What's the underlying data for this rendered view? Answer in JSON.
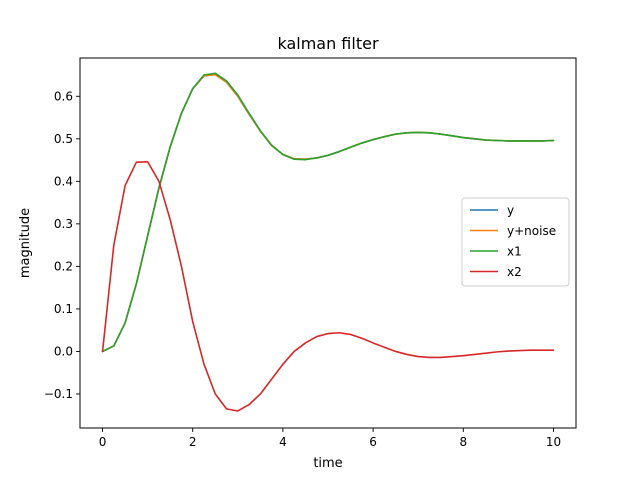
{
  "chart_data": {
    "type": "line",
    "title": "kalman filter",
    "xlabel": "time",
    "ylabel": "magnitude",
    "xlim": [
      -0.5,
      10.5
    ],
    "ylim": [
      -0.18,
      0.69
    ],
    "xticks": [
      0,
      2,
      4,
      6,
      8,
      10
    ],
    "yticks": [
      -0.1,
      0.0,
      0.1,
      0.2,
      0.3,
      0.4,
      0.5,
      0.6
    ],
    "ytick_labels": [
      "−0.1",
      "0.0",
      "0.1",
      "0.2",
      "0.3",
      "0.4",
      "0.5",
      "0.6"
    ],
    "grid": false,
    "legend_position": "center-right",
    "x": [
      0,
      0.25,
      0.5,
      0.75,
      1.0,
      1.25,
      1.5,
      1.75,
      2.0,
      2.25,
      2.5,
      2.75,
      3.0,
      3.25,
      3.5,
      3.75,
      4.0,
      4.25,
      4.5,
      4.75,
      5.0,
      5.25,
      5.5,
      5.75,
      6.0,
      6.25,
      6.5,
      6.75,
      7.0,
      7.25,
      7.5,
      7.75,
      8.0,
      8.25,
      8.5,
      8.75,
      9.0,
      9.25,
      9.5,
      9.75,
      10.0
    ],
    "series": [
      {
        "name": "y",
        "color": "#1f77b4",
        "values": [
          0.0,
          0.013,
          0.067,
          0.159,
          0.272,
          0.384,
          0.481,
          0.56,
          0.618,
          0.648,
          0.651,
          0.633,
          0.6,
          0.558,
          0.518,
          0.484,
          0.463,
          0.453,
          0.452,
          0.455,
          0.461,
          0.47,
          0.48,
          0.49,
          0.498,
          0.505,
          0.511,
          0.514,
          0.515,
          0.514,
          0.511,
          0.507,
          0.503,
          0.5,
          0.497,
          0.496,
          0.495,
          0.495,
          0.495,
          0.495,
          0.496
        ]
      },
      {
        "name": "y+noise",
        "color": "#ff7f0e",
        "values": [
          0.0,
          0.013,
          0.067,
          0.159,
          0.272,
          0.384,
          0.481,
          0.56,
          0.618,
          0.648,
          0.651,
          0.633,
          0.6,
          0.558,
          0.518,
          0.484,
          0.463,
          0.453,
          0.452,
          0.455,
          0.461,
          0.47,
          0.48,
          0.49,
          0.498,
          0.505,
          0.511,
          0.514,
          0.515,
          0.514,
          0.511,
          0.507,
          0.503,
          0.5,
          0.497,
          0.496,
          0.495,
          0.495,
          0.495,
          0.495,
          0.496
        ]
      },
      {
        "name": "x1",
        "color": "#2ca02c",
        "values": [
          0.0,
          0.013,
          0.067,
          0.159,
          0.272,
          0.384,
          0.481,
          0.56,
          0.618,
          0.65,
          0.654,
          0.636,
          0.603,
          0.56,
          0.519,
          0.485,
          0.463,
          0.452,
          0.451,
          0.455,
          0.461,
          0.47,
          0.48,
          0.49,
          0.498,
          0.505,
          0.511,
          0.514,
          0.515,
          0.514,
          0.511,
          0.507,
          0.503,
          0.5,
          0.497,
          0.496,
          0.495,
          0.495,
          0.495,
          0.495,
          0.496
        ]
      },
      {
        "name": "x2",
        "color": "#d62728",
        "values": [
          0.0,
          0.25,
          0.39,
          0.445,
          0.446,
          0.4,
          0.31,
          0.2,
          0.07,
          -0.03,
          -0.1,
          -0.135,
          -0.14,
          -0.125,
          -0.1,
          -0.065,
          -0.03,
          0.0,
          0.02,
          0.035,
          0.042,
          0.044,
          0.04,
          0.031,
          0.02,
          0.01,
          0.0,
          -0.007,
          -0.012,
          -0.014,
          -0.014,
          -0.012,
          -0.01,
          -0.007,
          -0.004,
          -0.001,
          0.001,
          0.002,
          0.003,
          0.003,
          0.003
        ]
      }
    ]
  }
}
